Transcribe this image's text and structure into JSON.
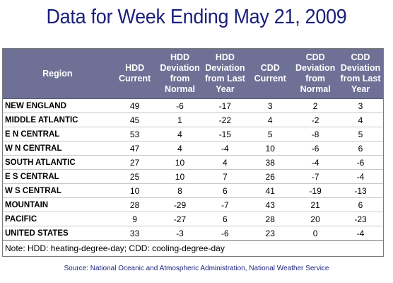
{
  "title": "Data for Week Ending May 21, 2009",
  "table": {
    "headers": [
      "Region",
      "HDD Current",
      "HDD Deviation from Normal",
      "HDD Deviation from Last Year",
      "CDD Current",
      "CDD Deviation from Normal",
      "CDD Deviation from Last Year"
    ],
    "rows": [
      [
        "NEW ENGLAND",
        "49",
        "-6",
        "-17",
        "3",
        "2",
        "3"
      ],
      [
        "MIDDLE ATLANTIC",
        "45",
        "1",
        "-22",
        "4",
        "-2",
        "4"
      ],
      [
        "E N CENTRAL",
        "53",
        "4",
        "-15",
        "5",
        "-8",
        "5"
      ],
      [
        "W N CENTRAL",
        "47",
        "4",
        "-4",
        "10",
        "-6",
        "6"
      ],
      [
        "SOUTH ATLANTIC",
        "27",
        "10",
        "4",
        "38",
        "-4",
        "-6"
      ],
      [
        "E S CENTRAL",
        "25",
        "10",
        "7",
        "26",
        "-7",
        "-4"
      ],
      [
        "W S CENTRAL",
        "10",
        "8",
        "6",
        "41",
        "-19",
        "-13"
      ],
      [
        "MOUNTAIN",
        "28",
        "-29",
        "-7",
        "43",
        "21",
        "6"
      ],
      [
        "PACIFIC",
        "9",
        "-27",
        "6",
        "28",
        "20",
        "-23"
      ],
      [
        "UNITED STATES",
        "33",
        "-3",
        "-6",
        "23",
        "0",
        "-4"
      ]
    ],
    "note": "Note: HDD: heating-degree-day; CDD: cooling-degree-day"
  },
  "source": "Source:  National Oceanic and Atmospheric Administration, National Weather Service",
  "colors": {
    "title": "#1a1f7a",
    "header_bg": "#6e7096",
    "header_text": "#ffffff"
  }
}
